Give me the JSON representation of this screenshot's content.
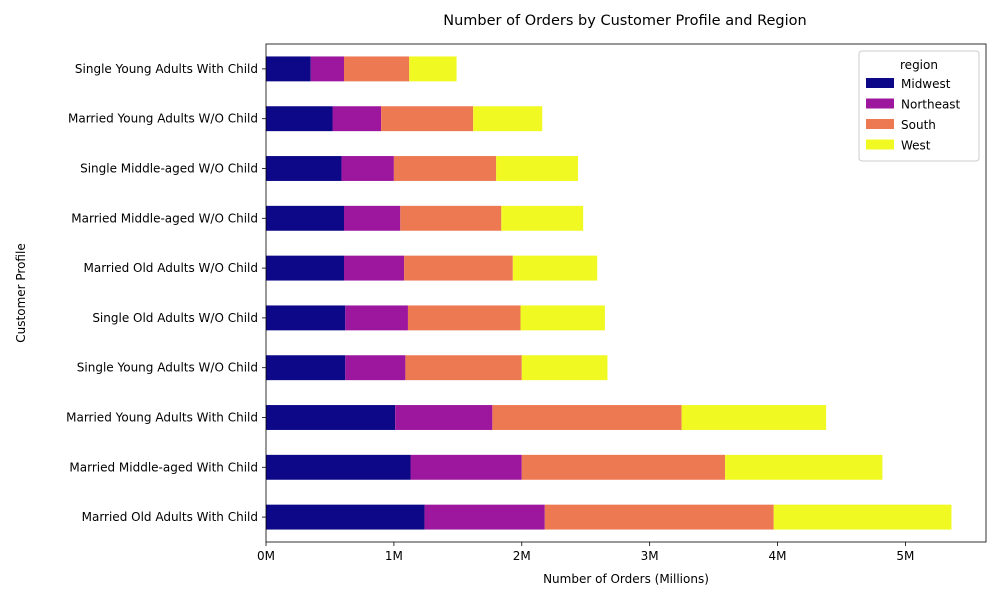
{
  "chart_data": {
    "type": "bar",
    "orientation": "horizontal",
    "stacked": true,
    "title": "Number of Orders by Customer Profile and Region",
    "xlabel": "Number of Orders (Millions)",
    "ylabel": "Customer Profile",
    "xlim": [
      0,
      5.63
    ],
    "xticks": [
      0,
      1,
      2,
      3,
      4,
      5
    ],
    "xtick_labels": [
      "0M",
      "1M",
      "2M",
      "3M",
      "4M",
      "5M"
    ],
    "grid": false,
    "legend": {
      "title": "region",
      "placement": "top-right"
    },
    "categories": [
      "Married Old Adults With Child",
      "Married Middle-aged With Child",
      "Married Young Adults With Child",
      "Single Young Adults W/O Child",
      "Single Old Adults W/O Child",
      "Married Old Adults W/O Child",
      "Married Middle-aged W/O Child",
      "Single Middle-aged W/O Child",
      "Married Young Adults W/O Child",
      "Single Young Adults With Child"
    ],
    "series": [
      {
        "name": "Midwest",
        "color": "#0d0887",
        "values": [
          1.24,
          1.13,
          1.01,
          0.62,
          0.62,
          0.61,
          0.61,
          0.59,
          0.52,
          0.35
        ]
      },
      {
        "name": "Northeast",
        "color": "#9c179e",
        "values": [
          0.94,
          0.87,
          0.76,
          0.47,
          0.49,
          0.47,
          0.44,
          0.41,
          0.38,
          0.26
        ]
      },
      {
        "name": "South",
        "color": "#ed7953",
        "values": [
          1.79,
          1.59,
          1.48,
          0.91,
          0.88,
          0.85,
          0.79,
          0.8,
          0.72,
          0.51
        ]
      },
      {
        "name": "West",
        "color": "#f0f921",
        "values": [
          1.39,
          1.23,
          1.13,
          0.67,
          0.66,
          0.66,
          0.64,
          0.64,
          0.54,
          0.37
        ]
      }
    ]
  }
}
